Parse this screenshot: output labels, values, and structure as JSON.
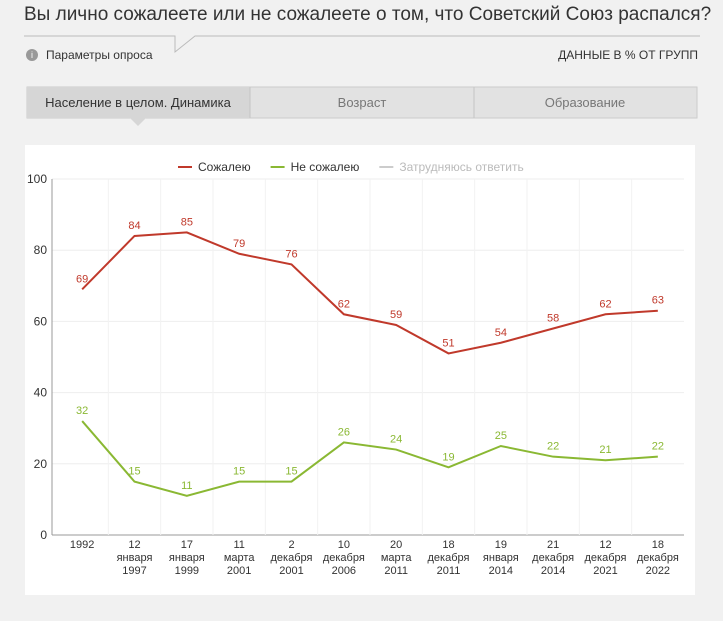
{
  "title": "Вы лично сожалеете или не сожалеете о том, что Советский Союз распался?",
  "params_label": "Параметры опроса",
  "data_note": "ДАННЫЕ В % ОТ ГРУПП",
  "tabs": [
    "Население в целом. Динамика",
    "Возраст",
    "Образование"
  ],
  "chart_data": {
    "type": "line",
    "categories": [
      "1992",
      "12\nянваря\n1997",
      "17\nянваря\n1999",
      "11\nмарта\n2001",
      "2\nдекабря\n2001",
      "10\nдекабря\n2006",
      "20\nмарта\n2011",
      "18\nдекабря\n2011",
      "19\nянваря\n2014",
      "21\nдекабря\n2014",
      "12\nдекабря\n2021",
      "18\nдекабря\n2022"
    ],
    "series": [
      {
        "name": "Сожалею",
        "color": "#c0392b",
        "values": [
          69,
          84,
          85,
          79,
          76,
          62,
          59,
          51,
          54,
          58,
          62,
          63
        ]
      },
      {
        "name": "Не сожалею",
        "color": "#8ab833",
        "values": [
          32,
          15,
          11,
          15,
          15,
          26,
          24,
          19,
          25,
          22,
          21,
          22
        ]
      },
      {
        "name": "Затрудняюсь ответить",
        "color": "#c8c8c8",
        "visible": false,
        "values": [
          null,
          null,
          null,
          null,
          null,
          null,
          null,
          null,
          null,
          null,
          null,
          null
        ]
      }
    ],
    "ylim": [
      0,
      100
    ],
    "yticks": [
      0,
      20,
      40,
      60,
      80,
      100
    ],
    "grid": true,
    "legend": "top"
  }
}
